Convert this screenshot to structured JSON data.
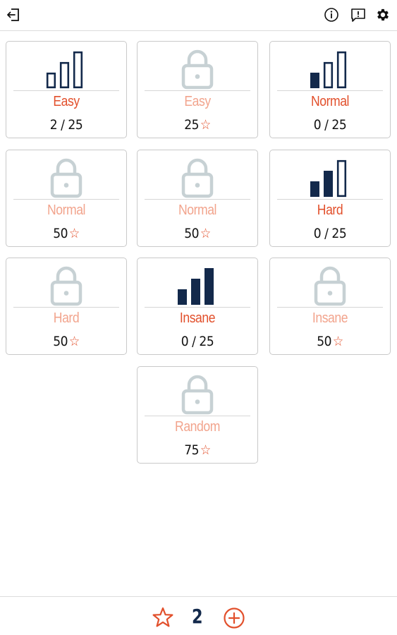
{
  "topbar": {
    "icons": [
      "exit-icon",
      "info-icon",
      "feedback-icon",
      "settings-gear-icon"
    ]
  },
  "colors": {
    "accent": "#e2502c",
    "accent_light": "#f2a48d",
    "navy": "#13294b",
    "lock_gray": "#c7d1d4"
  },
  "levels": [
    {
      "label": "Easy",
      "status": "2 / 25",
      "locked": false,
      "bars_filled": 0
    },
    {
      "label": "Easy",
      "status": "25",
      "locked": true
    },
    {
      "label": "Normal",
      "status": "0 / 25",
      "locked": false,
      "bars_filled": 1
    },
    {
      "label": "Normal",
      "status": "50",
      "locked": true
    },
    {
      "label": "Normal",
      "status": "50",
      "locked": true
    },
    {
      "label": "Hard",
      "status": "0 / 25",
      "locked": false,
      "bars_filled": 2
    },
    {
      "label": "Hard",
      "status": "50",
      "locked": true
    },
    {
      "label": "Insane",
      "status": "0 / 25",
      "locked": false,
      "bars_filled": 3
    },
    {
      "label": "Insane",
      "status": "50",
      "locked": true
    },
    {
      "label": "Random",
      "status": "75",
      "locked": true
    }
  ],
  "footer": {
    "star_count": "2"
  }
}
